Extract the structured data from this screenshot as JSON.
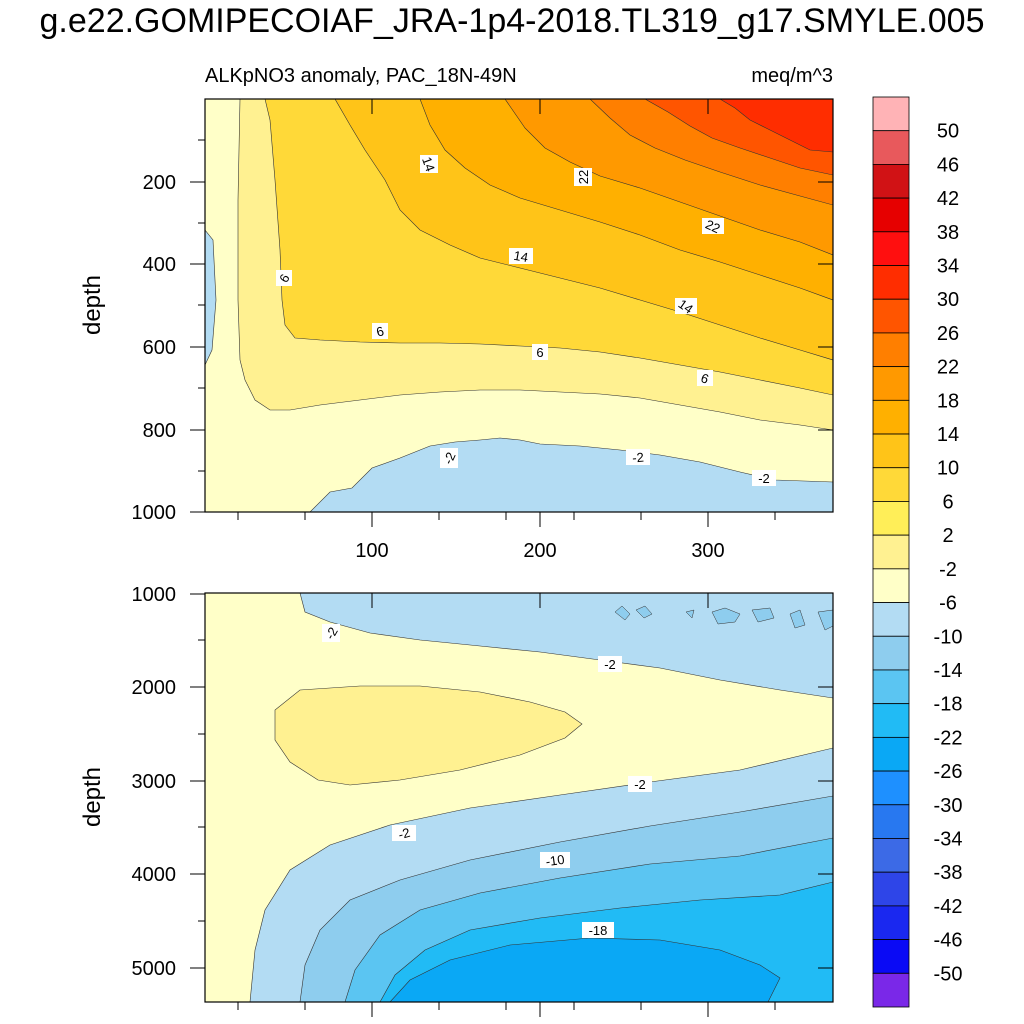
{
  "title": "g.e22.GOMIPECOIAF_JRA-1p4-2018.TL319_g17.SMYLE.005",
  "chart_data": {
    "type": "contour",
    "subtitle_left": "ALKpNO3 anomaly, PAC_18N-49N",
    "subtitle_right": "meq/m^3",
    "xlim": [
      1,
      366
    ],
    "x_ticks": [
      "100",
      "200",
      "300"
    ],
    "colorbar": {
      "levels": [
        "50",
        "46",
        "42",
        "38",
        "34",
        "30",
        "26",
        "22",
        "18",
        "14",
        "10",
        "6",
        "2",
        "-2",
        "-6",
        "-10",
        "-14",
        "-18",
        "-22",
        "-26",
        "-30",
        "-34",
        "-38",
        "-42",
        "-46",
        "-50"
      ],
      "colors": [
        "#FFB3B6",
        "#E8595C",
        "#D11215",
        "#E60000",
        "#FF0F0F",
        "#FF2D00",
        "#FF5500",
        "#FF7F00",
        "#FF9900",
        "#FFB000",
        "#FFC418",
        "#FFD938",
        "#FFEE58",
        "#FFF191",
        "#FFFFC8",
        "#B3DCF3",
        "#8ECDEE",
        "#5BC5F2",
        "#21BBF5",
        "#0AA8F5",
        "#1E90FF",
        "#2878F0",
        "#3C6AE6",
        "#2E45E8",
        "#1A28F0",
        "#0A0AF5",
        "#7A28E8"
      ]
    },
    "panels": [
      {
        "ylabel": "depth",
        "ylim": [
          1000,
          0
        ],
        "y_ticks": [
          "200",
          "400",
          "600",
          "800",
          "1000"
        ],
        "contour_labels": [
          "14",
          "22",
          "22",
          "6",
          "14",
          "14",
          "6",
          "6",
          "6",
          "-2",
          "-2",
          "-2"
        ]
      },
      {
        "ylabel": "depth",
        "ylim": [
          5300,
          1000
        ],
        "y_ticks": [
          "1000",
          "2000",
          "3000",
          "4000",
          "5000"
        ],
        "contour_labels": [
          "-2",
          "-2",
          "-2",
          "-2",
          "-10",
          "-18"
        ]
      }
    ]
  }
}
